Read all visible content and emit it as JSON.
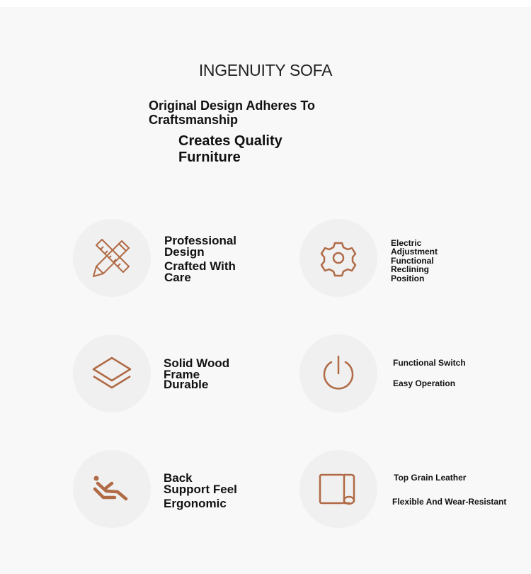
{
  "header": {
    "title": "INGENUITY SOFA",
    "subtitle_line1": "Original Design Adheres To Craftsmanship",
    "subtitle_line2": "Creates Quality Furniture"
  },
  "accent_color": "#b06a45",
  "features": [
    {
      "icon": "pencil-ruler-icon",
      "lines": [
        "Professional",
        "Design",
        "Crafted With",
        "Care"
      ]
    },
    {
      "icon": "gear-icon",
      "lines": [
        "Electric",
        "Adjustment",
        "Functional",
        "Reclining",
        "Position"
      ]
    },
    {
      "icon": "layers-icon",
      "lines": [
        "Solid Wood",
        "Frame",
        "Durable"
      ]
    },
    {
      "icon": "power-icon",
      "lines": [
        "Functional Switch",
        "Easy Operation"
      ]
    },
    {
      "icon": "recliner-person-icon",
      "lines": [
        "Back",
        "Support Feel",
        "Ergonomic"
      ]
    },
    {
      "icon": "leather-roll-icon",
      "lines": [
        "Top Grain Leather",
        "Flexible And Wear-Resistant"
      ]
    }
  ]
}
